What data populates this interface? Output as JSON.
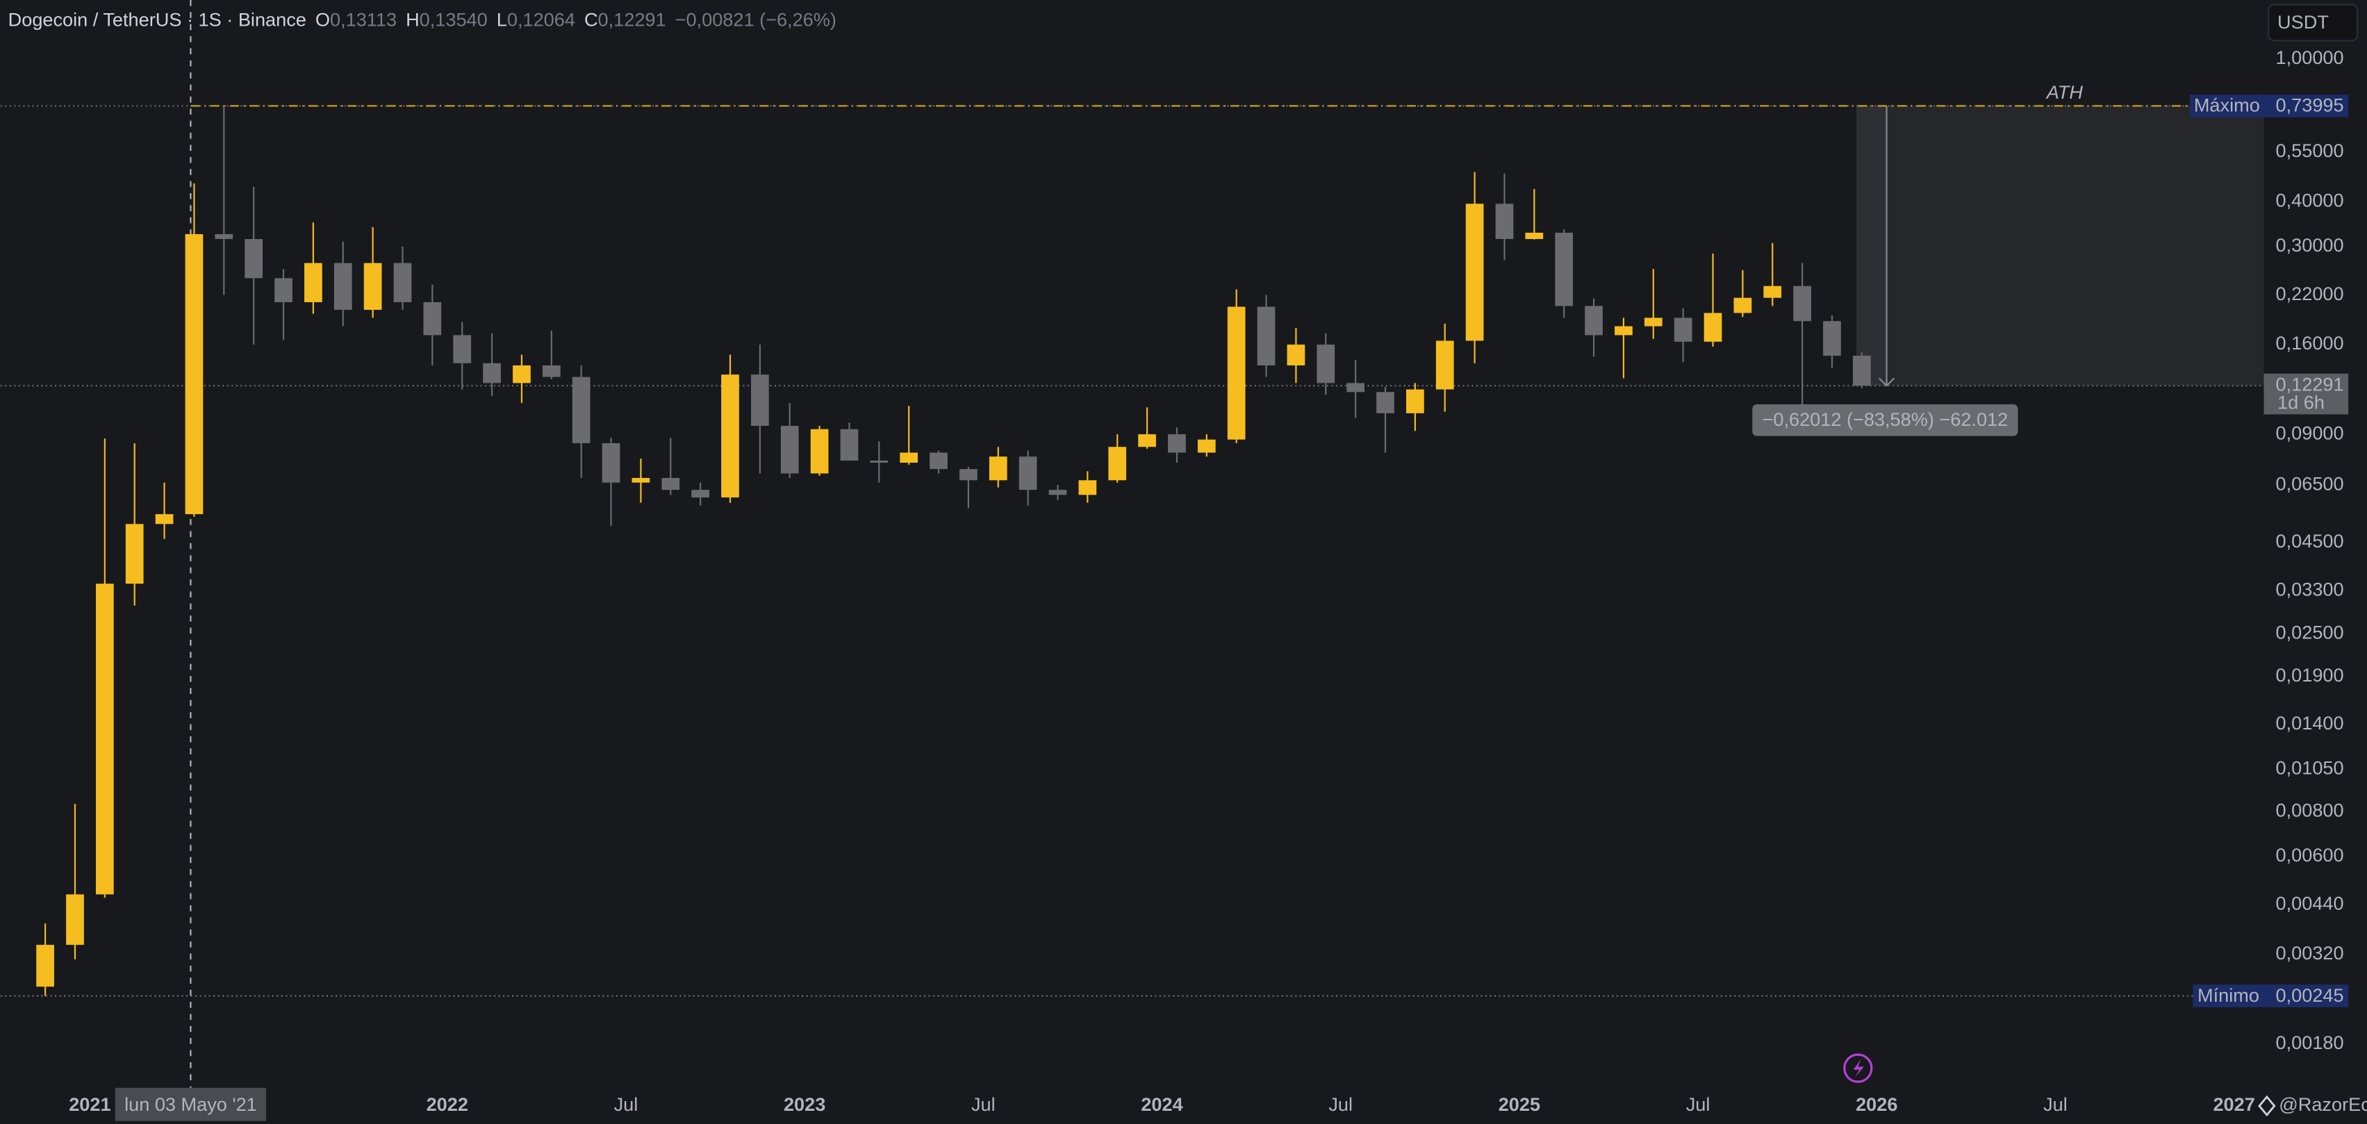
{
  "chart_data": {
    "type": "candlestick",
    "header": {
      "symbol": "Dogecoin / TetherUS · 1S · Binance",
      "ohlc": [
        {
          "key": "O",
          "value": "0,13113"
        },
        {
          "key": "H",
          "value": "0,13540"
        },
        {
          "key": "L",
          "value": "0,12064"
        },
        {
          "key": "C",
          "value": "0,12291"
        }
      ],
      "change": "−0,00821 (−6,26%)"
    },
    "currency": "USDT",
    "log_scale": true,
    "grid": false,
    "up_color": "#f5bd1f",
    "down_color": "#6b6b70",
    "x": [
      "2020-11",
      "2020-12",
      "2021-01",
      "2021-02",
      "2021-03",
      "2021-04",
      "2021-05",
      "2021-06",
      "2021-07",
      "2021-08",
      "2021-09",
      "2021-10",
      "2021-11",
      "2021-12",
      "2022-01",
      "2022-02",
      "2022-03",
      "2022-04",
      "2022-05",
      "2022-06",
      "2022-07",
      "2022-08",
      "2022-09",
      "2022-10",
      "2022-11",
      "2022-12",
      "2023-01",
      "2023-02",
      "2023-03",
      "2023-04",
      "2023-05",
      "2023-06",
      "2023-07",
      "2023-08",
      "2023-09",
      "2023-10",
      "2023-11",
      "2023-12",
      "2024-01",
      "2024-02",
      "2024-03",
      "2024-04",
      "2024-05",
      "2024-06",
      "2024-07",
      "2024-08",
      "2024-09",
      "2024-10",
      "2024-11",
      "2024-12",
      "2025-01",
      "2025-02",
      "2025-03",
      "2025-04",
      "2025-05",
      "2025-06",
      "2025-07",
      "2025-08",
      "2025-09",
      "2025-10",
      "2025-11",
      "2025-12"
    ],
    "open": [
      0.0026,
      0.0034,
      0.0047,
      0.0345,
      0.0506,
      0.0539,
      0.325,
      0.315,
      0.245,
      0.21,
      0.27,
      0.2,
      0.27,
      0.21,
      0.17,
      0.142,
      0.125,
      0.14,
      0.13,
      0.085,
      0.066,
      0.068,
      0.063,
      0.06,
      0.132,
      0.095,
      0.07,
      0.093,
      0.076,
      0.075,
      0.08,
      0.072,
      0.067,
      0.078,
      0.063,
      0.061,
      0.067,
      0.083,
      0.09,
      0.08,
      0.087,
      0.204,
      0.14,
      0.16,
      0.125,
      0.118,
      0.103,
      0.12,
      0.164,
      0.395,
      0.315,
      0.328,
      0.205,
      0.17,
      0.18,
      0.19,
      0.163,
      0.196,
      0.216,
      0.233,
      0.186,
      0.149
    ],
    "high": [
      0.0039,
      0.0084,
      0.0876,
      0.085,
      0.066,
      0.45,
      0.73995,
      0.44,
      0.26,
      0.35,
      0.31,
      0.34,
      0.3,
      0.235,
      0.185,
      0.172,
      0.15,
      0.175,
      0.14,
      0.088,
      0.077,
      0.088,
      0.066,
      0.15,
      0.16,
      0.11,
      0.095,
      0.097,
      0.086,
      0.108,
      0.081,
      0.073,
      0.083,
      0.081,
      0.065,
      0.071,
      0.09,
      0.107,
      0.094,
      0.09,
      0.228,
      0.22,
      0.178,
      0.172,
      0.145,
      0.122,
      0.125,
      0.183,
      0.484,
      0.48,
      0.434,
      0.335,
      0.215,
      0.19,
      0.26,
      0.202,
      0.287,
      0.258,
      0.307,
      0.27,
      0.193,
      0.152
    ],
    "low": [
      0.00245,
      0.0031,
      0.0046,
      0.03,
      0.046,
      0.053,
      0.22,
      0.16,
      0.165,
      0.195,
      0.18,
      0.19,
      0.2,
      0.14,
      0.12,
      0.115,
      0.11,
      0.128,
      0.068,
      0.05,
      0.058,
      0.061,
      0.057,
      0.058,
      0.07,
      0.068,
      0.069,
      0.076,
      0.066,
      0.074,
      0.07,
      0.056,
      0.064,
      0.057,
      0.059,
      0.058,
      0.066,
      0.082,
      0.075,
      0.078,
      0.085,
      0.13,
      0.125,
      0.116,
      0.1,
      0.08,
      0.092,
      0.104,
      0.142,
      0.275,
      0.314,
      0.19,
      0.148,
      0.129,
      0.166,
      0.143,
      0.158,
      0.191,
      0.205,
      0.095,
      0.138,
      0.121
    ],
    "close": [
      0.0034,
      0.0047,
      0.0345,
      0.0506,
      0.0539,
      0.325,
      0.315,
      0.245,
      0.21,
      0.27,
      0.2,
      0.27,
      0.21,
      0.17,
      0.142,
      0.125,
      0.14,
      0.13,
      0.085,
      0.066,
      0.068,
      0.063,
      0.06,
      0.132,
      0.095,
      0.07,
      0.093,
      0.076,
      0.075,
      0.08,
      0.072,
      0.067,
      0.078,
      0.063,
      0.061,
      0.067,
      0.083,
      0.09,
      0.08,
      0.087,
      0.204,
      0.14,
      0.16,
      0.125,
      0.118,
      0.103,
      0.12,
      0.164,
      0.395,
      0.315,
      0.328,
      0.205,
      0.17,
      0.18,
      0.19,
      0.163,
      0.196,
      0.216,
      0.233,
      0.186,
      0.149,
      0.12291
    ],
    "xlim": [
      "2020-10",
      "2027-02"
    ],
    "xticks": [
      {
        "value": "2021-01",
        "label": "2021"
      },
      {
        "value": "2022-01",
        "label": "2022"
      },
      {
        "value": "2022-07",
        "label": "Jul"
      },
      {
        "value": "2023-01",
        "label": "2023"
      },
      {
        "value": "2023-07",
        "label": "Jul"
      },
      {
        "value": "2024-01",
        "label": "2024"
      },
      {
        "value": "2024-07",
        "label": "Jul"
      },
      {
        "value": "2025-01",
        "label": "2025"
      },
      {
        "value": "2025-07",
        "label": "Jul"
      },
      {
        "value": "2026-01",
        "label": "2026"
      },
      {
        "value": "2026-07",
        "label": "Jul"
      },
      {
        "value": "2027-01",
        "label": "2027"
      }
    ],
    "ylim": [
      0.00144,
      1.46
    ],
    "yticks": [
      {
        "value": 1,
        "label": "1,00000"
      },
      {
        "value": 0.55,
        "label": "0,55000"
      },
      {
        "value": 0.4,
        "label": "0,40000"
      },
      {
        "value": 0.3,
        "label": "0,30000"
      },
      {
        "value": 0.22,
        "label": "0,22000"
      },
      {
        "value": 0.16,
        "label": "0,16000"
      },
      {
        "value": 0.09,
        "label": "0,09000"
      },
      {
        "value": 0.065,
        "label": "0,06500"
      },
      {
        "value": 0.045,
        "label": "0,04500"
      },
      {
        "value": 0.033,
        "label": "0,03300"
      },
      {
        "value": 0.025,
        "label": "0,02500"
      },
      {
        "value": 0.019,
        "label": "0,01900"
      },
      {
        "value": 0.014,
        "label": "0,01400"
      },
      {
        "value": 0.0105,
        "label": "0,01050"
      },
      {
        "value": 0.008,
        "label": "0,00800"
      },
      {
        "value": 0.006,
        "label": "0,00600"
      },
      {
        "value": 0.0044,
        "label": "0,00440"
      },
      {
        "value": 0.0032,
        "label": "0,00320"
      },
      {
        "value": 0.0018,
        "label": "0,00180"
      }
    ],
    "max_marker": {
      "name": "Máximo",
      "value": 0.73995,
      "label": "0,73995"
    },
    "min_marker": {
      "name": "Mínimo",
      "value": 0.00245,
      "label": "0,00245"
    },
    "last_price": {
      "value": 0.12291,
      "label": "0,12291",
      "countdown": "1d 6h"
    },
    "ath_label": "ATH",
    "measure_label": "−0,62012 (−83,58%) −62.012",
    "crosshair_label": "lun 03 Mayo '21",
    "watermark": "@RazorEc"
  }
}
